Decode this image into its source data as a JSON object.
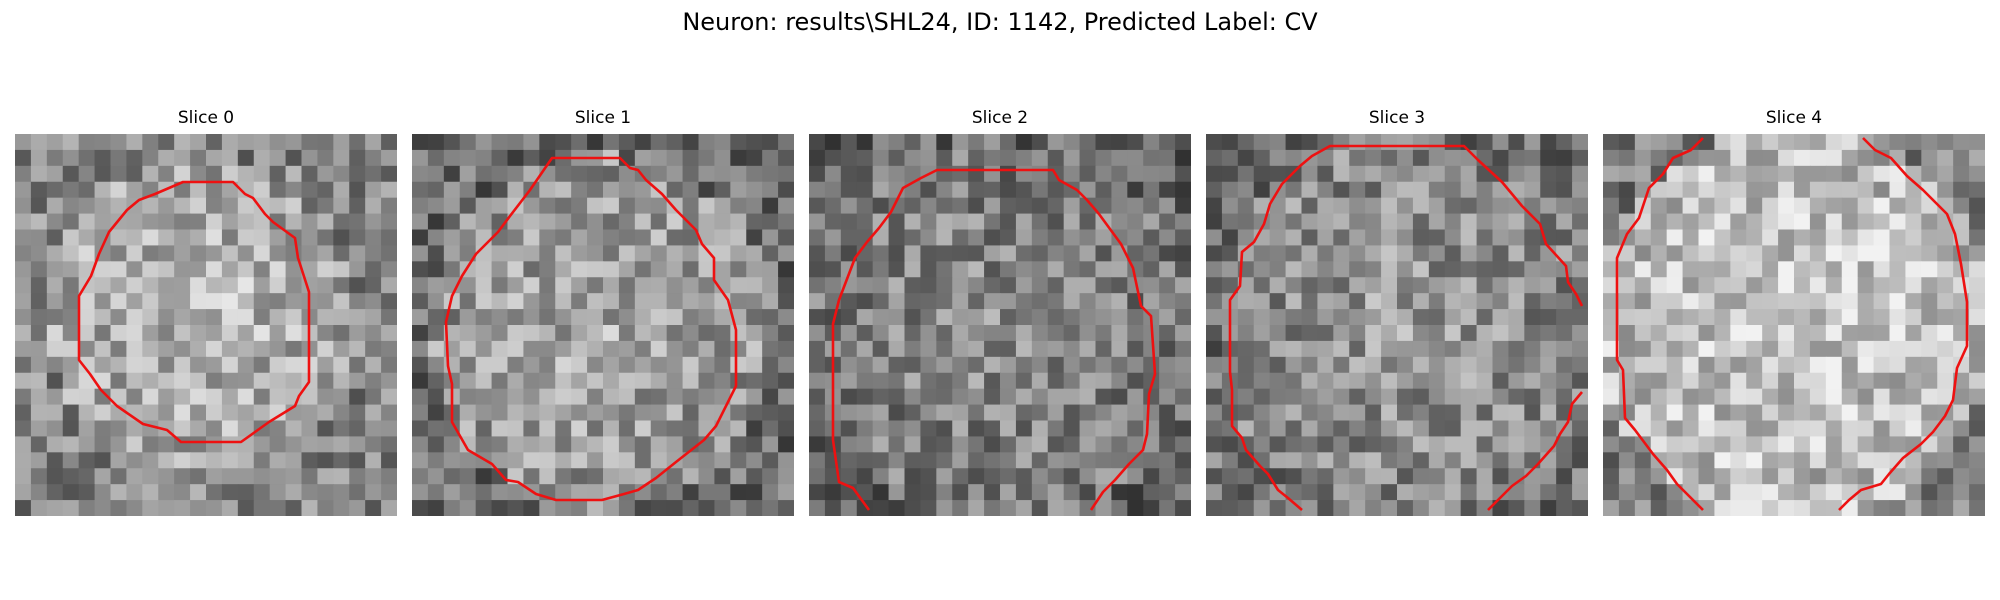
{
  "title": "Neuron: results\\SHL24, ID: 1142, Predicted Label: CV",
  "colors": {
    "contour": "#ee1111",
    "background": "#ffffff"
  },
  "panels": [
    {
      "label": "Slice 0"
    },
    {
      "label": "Slice 1"
    },
    {
      "label": "Slice 2"
    },
    {
      "label": "Slice 3"
    },
    {
      "label": "Slice 4"
    }
  ]
}
